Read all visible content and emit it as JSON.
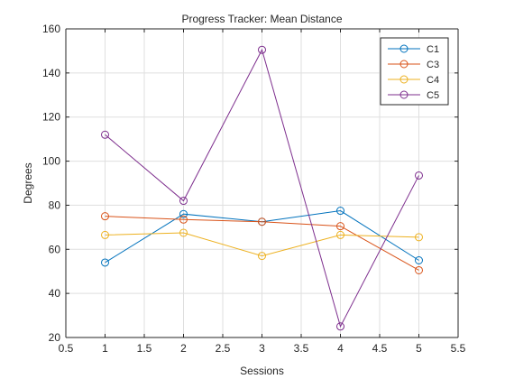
{
  "chart_data": {
    "type": "line",
    "title": "Progress Tracker: Mean Distance",
    "xlabel": "Sessions",
    "ylabel": "Degrees",
    "xlim": [
      0.5,
      5.5
    ],
    "ylim": [
      20,
      160
    ],
    "xticks": [
      "0.5",
      "1",
      "1.5",
      "2",
      "2.5",
      "3",
      "3.5",
      "4",
      "4.5",
      "5",
      "5.5"
    ],
    "yticks": [
      "20",
      "40",
      "60",
      "80",
      "100",
      "120",
      "140",
      "160"
    ],
    "grid": true,
    "legend_position": "top-right",
    "marker": "circle",
    "x": [
      1,
      2,
      3,
      4,
      5
    ],
    "series": [
      {
        "name": "C1",
        "color": "#0072BD",
        "values": [
          54,
          76,
          72.5,
          77.5,
          55
        ]
      },
      {
        "name": "C3",
        "color": "#D95319",
        "values": [
          75,
          73.5,
          72.5,
          70.5,
          50.5
        ]
      },
      {
        "name": "C4",
        "color": "#EDB120",
        "values": [
          66.5,
          67.5,
          57,
          66.5,
          65.5
        ]
      },
      {
        "name": "C5",
        "color": "#7E2F8E",
        "values": [
          112,
          82,
          150.5,
          25,
          93.5
        ]
      }
    ]
  }
}
